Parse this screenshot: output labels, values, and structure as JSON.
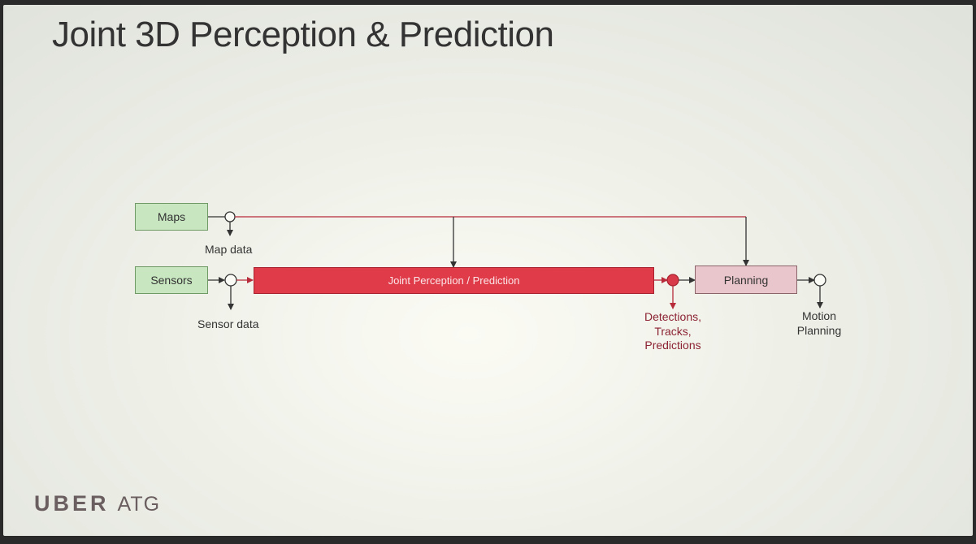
{
  "slide": {
    "title": "Joint 3D Perception & Prediction"
  },
  "diagram": {
    "maps_label": "Maps",
    "sensors_label": "Sensors",
    "map_data_label": "Map data",
    "sensor_data_label": "Sensor data",
    "joint_label": "Joint Perception / Prediction",
    "planning_label": "Planning",
    "detections_lines": [
      "Detections,",
      "Tracks,",
      "Predictions"
    ],
    "motion_lines": [
      "Motion",
      "Planning"
    ],
    "colors": {
      "green_fill": "#c8e6c0",
      "red_fill": "#df3b49",
      "pink_fill": "#e9c6cc",
      "line": "#333333",
      "red_line": "#b82b3b"
    }
  },
  "footer": {
    "logo_brand": "UBER",
    "logo_suffix": "ATG"
  }
}
